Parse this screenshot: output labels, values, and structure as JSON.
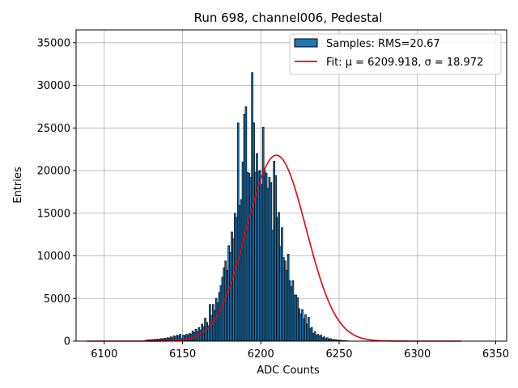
{
  "chart_data": {
    "type": "bar",
    "title": "Run 698, channel006, Pedestal",
    "xlabel": "ADC Counts",
    "ylabel": "Entries",
    "xlim": [
      6082,
      6357
    ],
    "ylim": [
      0,
      36500
    ],
    "xticks": [
      6100,
      6150,
      6200,
      6250,
      6300,
      6350
    ],
    "yticks": [
      0,
      5000,
      10000,
      15000,
      20000,
      25000,
      30000,
      35000
    ],
    "grid": true,
    "legend_position": "top-right",
    "legend": {
      "samples_label": "Samples: RMS=20.67",
      "fit_label": "Fit: μ = 6209.918, σ = 18.972"
    },
    "colors": {
      "bars": "#1f77b4",
      "bar_edge": "#000000",
      "fit": "#e8000b"
    },
    "histogram": {
      "bin_start": 6089,
      "bin_width": 1,
      "values": [
        0,
        0,
        0,
        0,
        0,
        0,
        0,
        0,
        0,
        0,
        0,
        0,
        0,
        0,
        0,
        0,
        0,
        0,
        0,
        0,
        0,
        0,
        0,
        0,
        0,
        0,
        0,
        0,
        0,
        0,
        0,
        0,
        0,
        0,
        0,
        0,
        0,
        100,
        120,
        150,
        150,
        160,
        180,
        200,
        220,
        200,
        250,
        300,
        250,
        350,
        300,
        400,
        350,
        500,
        400,
        600,
        500,
        700,
        600,
        800,
        300,
        700,
        650,
        800,
        700,
        900,
        800,
        1200,
        1000,
        1400,
        1100,
        1600,
        1300,
        2000,
        1700,
        2700,
        2200,
        1800,
        4300,
        3000,
        4300,
        3600,
        5000,
        4500,
        5700,
        6500,
        7500,
        8600,
        9400,
        8300,
        11200,
        10400,
        12800,
        12000,
        15000,
        14500,
        25600,
        15900,
        16600,
        21000,
        26600,
        27500,
        19800,
        19700,
        19200,
        31500,
        25600,
        19800,
        22000,
        19900,
        20000,
        18400,
        25100,
        20000,
        19700,
        17900,
        19200,
        18600,
        13000,
        21100,
        19400,
        14500,
        15100,
        11100,
        13300,
        9800,
        9400,
        8300,
        10200,
        7100,
        6400,
        7100,
        5400,
        5400,
        5100,
        3800,
        3200,
        3700,
        2600,
        3100,
        2000,
        2800,
        1500,
        1600,
        900,
        1100,
        700,
        800,
        600,
        700,
        400,
        500,
        300,
        400,
        250,
        300,
        200,
        200,
        150,
        150,
        100,
        100,
        80,
        60,
        50,
        40,
        30,
        20,
        10,
        0,
        0,
        0,
        0,
        0,
        0,
        0,
        0,
        0,
        0,
        0
      ]
    },
    "fit": {
      "mu": 6209.918,
      "sigma": 18.972,
      "amplitude": 21800,
      "x_start": 6089,
      "x_end": 6328
    }
  }
}
